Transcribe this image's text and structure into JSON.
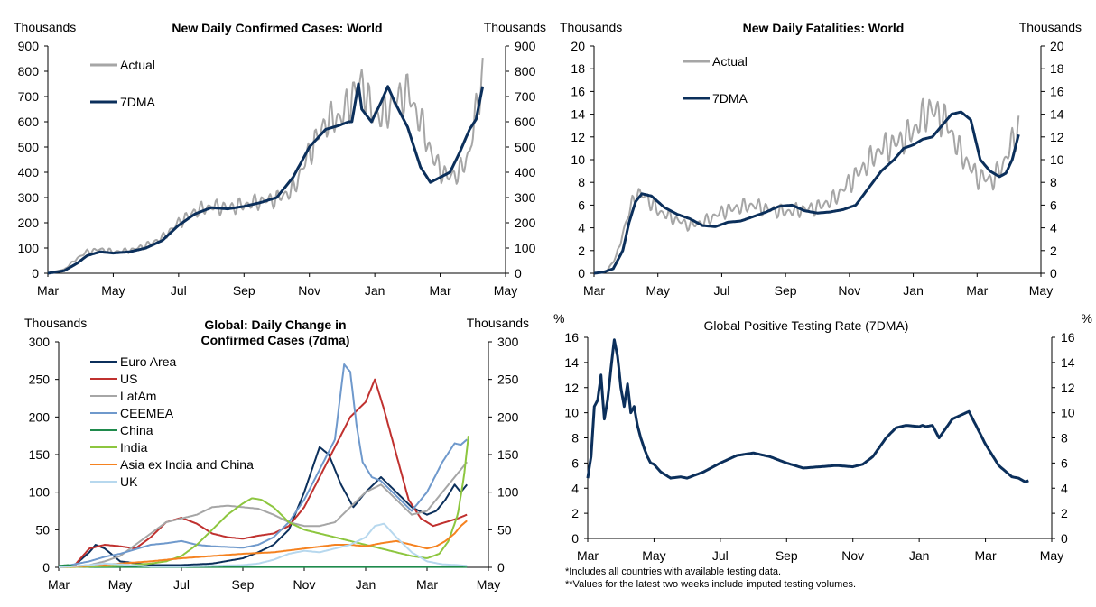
{
  "colors": {
    "actual": "#a6a6a6",
    "dma": "#0b2f5b",
    "euro_area": "#0b2f5b",
    "us": "#c0312f",
    "latam": "#a6a6a6",
    "ceemea": "#6f99cc",
    "china": "#1f8a4c",
    "india": "#8dc63f",
    "asia_ex": "#f58220",
    "uk": "#b7d8ee"
  },
  "chart_data": [
    {
      "type": "line",
      "title": "New Daily Confirmed Cases: World",
      "ylabel_left": "Thousands",
      "ylabel_right": "Thousands",
      "ylim": [
        0,
        900
      ],
      "yticks": [
        "0",
        "100",
        "200",
        "300",
        "400",
        "500",
        "600",
        "700",
        "800",
        "900"
      ],
      "xticks": [
        "Mar",
        "May",
        "Jul",
        "Sep",
        "Nov",
        "Jan",
        "Mar",
        "May"
      ],
      "legend": [
        "Actual",
        "7DMA"
      ],
      "x_range_months": [
        0,
        14
      ],
      "series": [
        {
          "name": "Actual",
          "style": "oscillating",
          "x": [
            0,
            0.5,
            0.9,
            1.2,
            1.6,
            2.0,
            2.5,
            3.0,
            3.5,
            4.0,
            4.5,
            5.0,
            5.5,
            6.0,
            6.5,
            7.0,
            7.5,
            8.0,
            8.5,
            9.0,
            9.3,
            9.6,
            9.9,
            10.2,
            10.6,
            11.0,
            11.4,
            11.8,
            12.2,
            12.6,
            12.9,
            13.1,
            13.3
          ],
          "values": [
            0,
            15,
            60,
            85,
            95,
            85,
            90,
            110,
            140,
            200,
            245,
            265,
            260,
            270,
            285,
            295,
            330,
            480,
            600,
            620,
            700,
            760,
            640,
            620,
            680,
            720,
            600,
            450,
            380,
            400,
            480,
            640,
            800
          ]
        },
        {
          "name": "7DMA",
          "style": "smooth",
          "x": [
            0,
            0.5,
            0.9,
            1.2,
            1.6,
            2.0,
            2.5,
            3.0,
            3.5,
            4.0,
            4.5,
            5.0,
            5.5,
            6.0,
            6.5,
            7.0,
            7.5,
            8.0,
            8.5,
            8.9,
            9.2,
            9.3,
            9.5,
            9.6,
            9.9,
            10.2,
            10.4,
            10.6,
            11.0,
            11.4,
            11.7,
            12.0,
            12.3,
            12.6,
            12.9,
            13.1,
            13.3
          ],
          "values": [
            0,
            10,
            40,
            70,
            85,
            80,
            85,
            100,
            130,
            190,
            235,
            260,
            255,
            265,
            280,
            300,
            380,
            500,
            570,
            585,
            600,
            600,
            750,
            650,
            600,
            680,
            740,
            680,
            580,
            420,
            360,
            380,
            400,
            480,
            570,
            610,
            740
          ]
        }
      ]
    },
    {
      "type": "line",
      "title": "New Daily Fatalities: World",
      "ylabel_left": "Thousands",
      "ylabel_right": "Thousands",
      "ylim": [
        0,
        20
      ],
      "yticks": [
        "0",
        "2",
        "4",
        "6",
        "8",
        "10",
        "12",
        "14",
        "16",
        "18",
        "20"
      ],
      "xticks": [
        "Mar",
        "May",
        "Jul",
        "Sep",
        "Nov",
        "Jan",
        "Mar",
        "May"
      ],
      "legend": [
        "Actual",
        "7DMA"
      ],
      "x_range_months": [
        0,
        14
      ],
      "series": [
        {
          "name": "Actual",
          "style": "oscillating",
          "x": [
            0,
            0.4,
            0.7,
            1.0,
            1.3,
            1.6,
            2.0,
            2.5,
            3.0,
            3.5,
            4.0,
            4.5,
            5.0,
            5.5,
            6.0,
            6.5,
            7.0,
            7.5,
            8.0,
            8.5,
            9.0,
            9.5,
            10.0,
            10.5,
            11.0,
            11.5,
            12.0,
            12.5,
            12.8,
            13.1,
            13.3
          ],
          "values": [
            0,
            0.2,
            1.5,
            4.5,
            7.0,
            6.8,
            5.5,
            4.8,
            4.2,
            4.6,
            5.4,
            5.8,
            6.0,
            5.6,
            5.4,
            5.6,
            5.8,
            6.5,
            8.0,
            9.5,
            11.0,
            11.5,
            12.5,
            14.5,
            13.5,
            10.5,
            8.5,
            8.2,
            9.5,
            11.5,
            13.0
          ]
        },
        {
          "name": "7DMA",
          "style": "smooth",
          "x": [
            0,
            0.3,
            0.6,
            0.9,
            1.1,
            1.3,
            1.5,
            1.8,
            2.2,
            2.6,
            3.0,
            3.4,
            3.8,
            4.2,
            4.6,
            5.0,
            5.4,
            5.8,
            6.2,
            6.6,
            7.0,
            7.4,
            7.8,
            8.2,
            8.6,
            9.0,
            9.4,
            9.7,
            10.0,
            10.3,
            10.6,
            10.9,
            11.2,
            11.5,
            11.8,
            12.1,
            12.4,
            12.7,
            12.9,
            13.1,
            13.3
          ],
          "values": [
            0,
            0.1,
            0.4,
            2.0,
            4.5,
            6.3,
            7.0,
            6.8,
            5.8,
            5.2,
            4.8,
            4.2,
            4.1,
            4.5,
            4.6,
            5.0,
            5.4,
            5.9,
            6.0,
            5.5,
            5.3,
            5.4,
            5.6,
            6.0,
            7.5,
            9.0,
            10.0,
            11.0,
            11.3,
            11.8,
            12.0,
            13.0,
            14.0,
            14.2,
            13.5,
            10.0,
            9.0,
            8.5,
            8.8,
            10.0,
            12.2
          ]
        }
      ]
    },
    {
      "type": "line",
      "title": "Global: Daily Change in Confirmed Cases (7dma)",
      "title_lines": [
        "Global: Daily Change in",
        "Confirmed Cases (7dma)"
      ],
      "ylabel_left": "Thousands",
      "ylabel_right": "Thousands",
      "ylim": [
        0,
        300
      ],
      "yticks": [
        "0",
        "50",
        "100",
        "150",
        "200",
        "250",
        "300"
      ],
      "xticks": [
        "Mar",
        "May",
        "Jul",
        "Sep",
        "Nov",
        "Jan",
        "Mar",
        "May"
      ],
      "legend": [
        "Euro Area",
        "US",
        "LatAm",
        "CEEMEA",
        "China",
        "India",
        "Asia ex India and China",
        "UK"
      ],
      "x_range_months": [
        0,
        14
      ],
      "series": [
        {
          "name": "Euro Area",
          "color_key": "euro_area",
          "x": [
            0,
            0.5,
            1.0,
            1.2,
            1.5,
            2.0,
            3.0,
            4.0,
            5.0,
            6.0,
            6.5,
            7.0,
            7.5,
            8.0,
            8.5,
            8.8,
            9.2,
            9.6,
            10.0,
            10.5,
            11.0,
            11.5,
            12.0,
            12.3,
            12.6,
            12.9,
            13.1,
            13.3
          ],
          "values": [
            0,
            2,
            20,
            30,
            25,
            8,
            3,
            3,
            5,
            12,
            20,
            30,
            50,
            100,
            160,
            150,
            110,
            80,
            100,
            120,
            100,
            80,
            70,
            75,
            90,
            110,
            100,
            110
          ]
        },
        {
          "name": "US",
          "color_key": "us",
          "x": [
            0,
            0.5,
            1.0,
            1.5,
            2.0,
            2.5,
            3.0,
            3.5,
            4.0,
            4.5,
            5.0,
            5.5,
            6.0,
            6.5,
            7.0,
            7.5,
            8.0,
            8.5,
            9.0,
            9.5,
            10.0,
            10.3,
            10.6,
            11.0,
            11.4,
            11.8,
            12.2,
            12.6,
            13.0,
            13.3
          ],
          "values": [
            0,
            2,
            25,
            30,
            28,
            25,
            40,
            60,
            66,
            58,
            45,
            40,
            38,
            42,
            45,
            55,
            80,
            120,
            160,
            200,
            220,
            250,
            210,
            150,
            90,
            65,
            55,
            60,
            65,
            70
          ]
        },
        {
          "name": "LatAm",
          "color_key": "latam",
          "x": [
            0,
            1.0,
            1.5,
            2.0,
            2.5,
            3.0,
            3.5,
            4.0,
            4.5,
            5.0,
            5.5,
            6.0,
            6.5,
            7.0,
            7.5,
            8.0,
            8.5,
            9.0,
            9.5,
            10.0,
            10.5,
            11.0,
            11.5,
            12.0,
            12.5,
            12.9,
            13.1,
            13.3
          ],
          "values": [
            0,
            3,
            8,
            15,
            30,
            45,
            60,
            65,
            70,
            80,
            82,
            80,
            78,
            70,
            60,
            55,
            55,
            60,
            80,
            100,
            110,
            90,
            70,
            75,
            100,
            120,
            130,
            140
          ]
        },
        {
          "name": "CEEMEA",
          "color_key": "ceemea",
          "x": [
            0,
            1.0,
            1.5,
            2.0,
            2.5,
            3.0,
            3.5,
            4.0,
            4.5,
            5.0,
            5.5,
            6.0,
            6.5,
            7.0,
            7.5,
            8.0,
            8.5,
            9.0,
            9.3,
            9.5,
            9.7,
            9.9,
            10.2,
            10.5,
            11.0,
            11.5,
            12.0,
            12.5,
            12.9,
            13.1,
            13.3
          ],
          "values": [
            0,
            8,
            14,
            18,
            24,
            30,
            32,
            35,
            30,
            28,
            27,
            26,
            30,
            40,
            60,
            90,
            130,
            170,
            270,
            260,
            190,
            140,
            120,
            115,
            95,
            75,
            100,
            140,
            165,
            163,
            170
          ]
        },
        {
          "name": "China",
          "color_key": "china",
          "x": [
            0,
            0.3,
            0.6,
            1.0,
            2.0,
            13.3
          ],
          "values": [
            2,
            3,
            1,
            0.5,
            0.5,
            0.5
          ]
        },
        {
          "name": "India",
          "color_key": "india",
          "x": [
            0,
            2.0,
            3.0,
            3.5,
            4.0,
            4.5,
            5.0,
            5.5,
            6.0,
            6.3,
            6.6,
            7.0,
            7.5,
            8.0,
            8.5,
            9.0,
            9.5,
            10.0,
            11.0,
            11.5,
            12.0,
            12.4,
            12.7,
            13.0,
            13.2,
            13.35
          ],
          "values": [
            0,
            2,
            5,
            8,
            15,
            30,
            50,
            70,
            85,
            92,
            90,
            80,
            60,
            50,
            45,
            40,
            35,
            30,
            20,
            15,
            12,
            18,
            35,
            70,
            120,
            175
          ]
        },
        {
          "name": "Asia ex India and China",
          "color_key": "asia_ex",
          "x": [
            0,
            1.0,
            2.0,
            3.0,
            4.0,
            5.0,
            6.0,
            7.0,
            8.0,
            9.0,
            9.5,
            10.0,
            10.5,
            11.0,
            11.5,
            12.0,
            12.3,
            12.6,
            12.9,
            13.1,
            13.3
          ],
          "values": [
            0,
            2,
            5,
            8,
            12,
            15,
            18,
            20,
            25,
            30,
            30,
            28,
            32,
            35,
            30,
            25,
            28,
            35,
            45,
            55,
            62
          ]
        },
        {
          "name": "UK",
          "color_key": "uk",
          "x": [
            0,
            1.0,
            1.5,
            2.0,
            3.0,
            4.0,
            5.0,
            6.0,
            6.5,
            7.0,
            7.5,
            8.0,
            8.5,
            9.0,
            9.5,
            10.0,
            10.3,
            10.6,
            11.0,
            11.5,
            12.0,
            12.5,
            13.0,
            13.3
          ],
          "values": [
            0,
            3,
            5,
            4,
            1,
            1,
            2,
            3,
            5,
            10,
            18,
            22,
            20,
            25,
            30,
            40,
            55,
            58,
            40,
            20,
            8,
            4,
            3,
            2
          ]
        }
      ]
    },
    {
      "type": "line",
      "title": "Global Positive Testing Rate (7DMA)",
      "ylabel_left": "%",
      "ylabel_right": "%",
      "ylim": [
        0,
        16
      ],
      "yticks": [
        "0",
        "2",
        "4",
        "6",
        "8",
        "10",
        "12",
        "14",
        "16"
      ],
      "xticks": [
        "Mar",
        "May",
        "Jul",
        "Sep",
        "Nov",
        "Jan",
        "Mar",
        "May"
      ],
      "x_range_months": [
        0,
        14
      ],
      "series": [
        {
          "name": "Positive Testing Rate",
          "color_key": "dma",
          "x": [
            0,
            0.1,
            0.2,
            0.3,
            0.4,
            0.5,
            0.6,
            0.7,
            0.8,
            0.9,
            1.0,
            1.1,
            1.2,
            1.3,
            1.4,
            1.5,
            1.6,
            1.7,
            1.8,
            1.9,
            2.0,
            2.2,
            2.5,
            2.8,
            3.0,
            3.5,
            4.0,
            4.5,
            5.0,
            5.5,
            6.0,
            6.5,
            7.0,
            7.5,
            8.0,
            8.3,
            8.6,
            9.0,
            9.3,
            9.6,
            10.0,
            10.1,
            10.2,
            10.4,
            10.6,
            11.0,
            11.5,
            12.0,
            12.4,
            12.8,
            13.0,
            13.2,
            13.3
          ],
          "values": [
            4.8,
            6.5,
            10.5,
            11.0,
            13.0,
            9.5,
            11.0,
            13.5,
            15.8,
            14.5,
            12.0,
            10.5,
            12.3,
            10.0,
            10.5,
            9.0,
            8.0,
            7.2,
            6.5,
            6.0,
            5.9,
            5.3,
            4.8,
            4.9,
            4.8,
            5.3,
            6.0,
            6.6,
            6.8,
            6.5,
            6.0,
            5.6,
            5.7,
            5.8,
            5.7,
            5.9,
            6.5,
            8.0,
            8.8,
            9.0,
            8.9,
            9.0,
            8.9,
            9.0,
            8.0,
            9.5,
            10.1,
            7.5,
            5.8,
            4.9,
            4.8,
            4.5,
            4.6
          ]
        }
      ]
    }
  ],
  "footnotes": [
    "*Includes all countries with available testing data.",
    "**Values for the latest two weeks include imputed testing volumes."
  ]
}
